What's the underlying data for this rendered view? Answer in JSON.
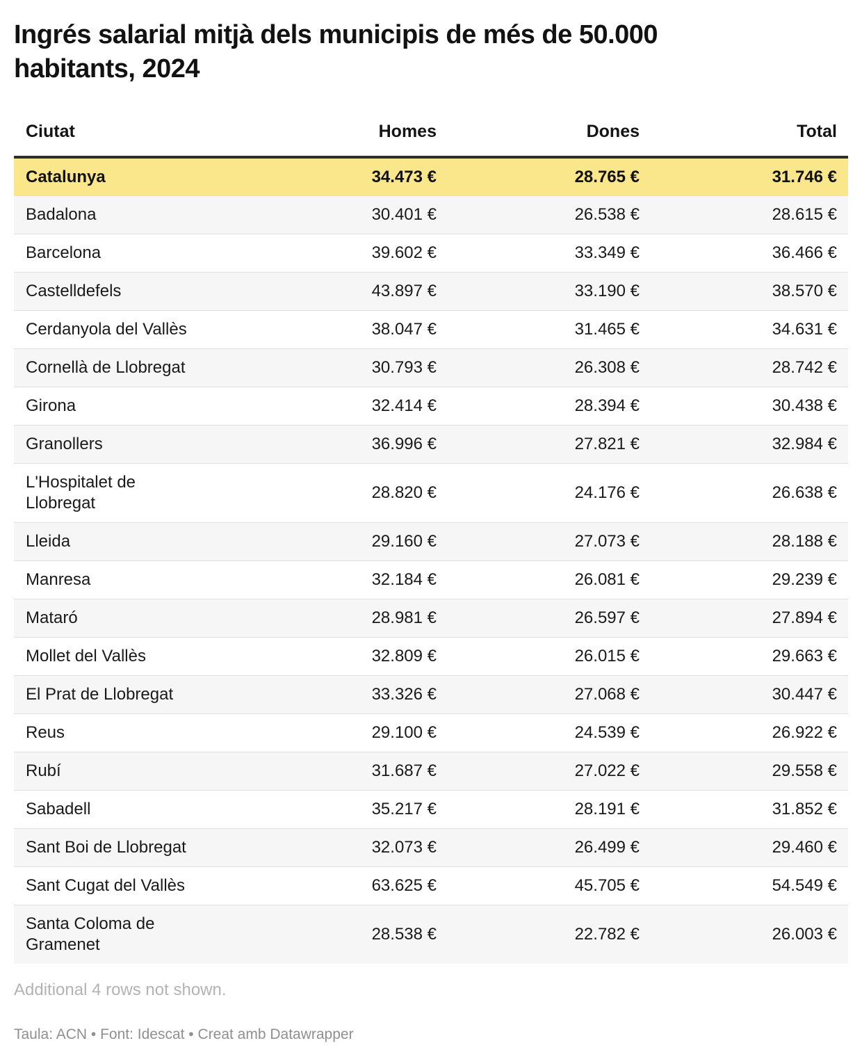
{
  "title": "Ingrés salarial mitjà dels municipis de més de 50.000 habitants, 2024",
  "table": {
    "columns": [
      "Ciutat",
      "Homes",
      "Dones",
      "Total"
    ],
    "rows": [
      {
        "ciutat": "Catalunya",
        "homes": "34.473 €",
        "dones": "28.765 €",
        "total": "31.746 €",
        "highlight": true
      },
      {
        "ciutat": "Badalona",
        "homes": "30.401 €",
        "dones": "26.538 €",
        "total": "28.615 €"
      },
      {
        "ciutat": "Barcelona",
        "homes": "39.602 €",
        "dones": "33.349 €",
        "total": "36.466 €"
      },
      {
        "ciutat": "Castelldefels",
        "homes": "43.897 €",
        "dones": "33.190 €",
        "total": "38.570 €"
      },
      {
        "ciutat": "Cerdanyola del Vallès",
        "homes": "38.047 €",
        "dones": "31.465 €",
        "total": "34.631 €"
      },
      {
        "ciutat": "Cornellà de Llobregat",
        "homes": "30.793 €",
        "dones": "26.308 €",
        "total": "28.742 €"
      },
      {
        "ciutat": "Girona",
        "homes": "32.414 €",
        "dones": "28.394 €",
        "total": "30.438 €"
      },
      {
        "ciutat": "Granollers",
        "homes": "36.996 €",
        "dones": "27.821 €",
        "total": "32.984 €"
      },
      {
        "ciutat": "L'Hospitalet de Llobregat",
        "homes": "28.820 €",
        "dones": "24.176 €",
        "total": "26.638 €"
      },
      {
        "ciutat": "Lleida",
        "homes": "29.160 €",
        "dones": "27.073 €",
        "total": "28.188 €"
      },
      {
        "ciutat": "Manresa",
        "homes": "32.184 €",
        "dones": "26.081 €",
        "total": "29.239 €"
      },
      {
        "ciutat": "Mataró",
        "homes": "28.981 €",
        "dones": "26.597 €",
        "total": "27.894 €"
      },
      {
        "ciutat": "Mollet del Vallès",
        "homes": "32.809 €",
        "dones": "26.015 €",
        "total": "29.663 €"
      },
      {
        "ciutat": "El Prat de Llobregat",
        "homes": "33.326 €",
        "dones": "27.068 €",
        "total": "30.447 €"
      },
      {
        "ciutat": "Reus",
        "homes": "29.100 €",
        "dones": "24.539 €",
        "total": "26.922 €"
      },
      {
        "ciutat": "Rubí",
        "homes": "31.687 €",
        "dones": "27.022 €",
        "total": "29.558 €"
      },
      {
        "ciutat": "Sabadell",
        "homes": "35.217 €",
        "dones": "28.191 €",
        "total": "31.852 €"
      },
      {
        "ciutat": "Sant Boi de Llobregat",
        "homes": "32.073 €",
        "dones": "26.499 €",
        "total": "29.460 €"
      },
      {
        "ciutat": "Sant Cugat del Vallès",
        "homes": "63.625 €",
        "dones": "45.705 €",
        "total": "54.549 €"
      },
      {
        "ciutat": "Santa Coloma de Gramenet",
        "homes": "28.538 €",
        "dones": "22.782 €",
        "total": "26.003 €"
      }
    ]
  },
  "footer": {
    "additional_note": "Additional 4 rows not shown.",
    "credit": "Taula: ACN • Font: Idescat • Creat amb Datawrapper"
  },
  "colors": {
    "highlight_bg": "#fae78c",
    "stripe_bg": "#f6f6f6",
    "header_rule": "#2d2d2d",
    "row_divider": "#e0e0e0",
    "note_text": "#b3b3b3",
    "credit_text": "#8f8f8f"
  },
  "chart_data": {
    "type": "table",
    "title": "Ingrés salarial mitjà dels municipis de més de 50.000 habitants, 2024",
    "columns": [
      "Ciutat",
      "Homes",
      "Dones",
      "Total"
    ],
    "unit": "€",
    "highlighted_row": "Catalunya",
    "rows": [
      [
        "Catalunya",
        34473,
        28765,
        31746
      ],
      [
        "Badalona",
        30401,
        26538,
        28615
      ],
      [
        "Barcelona",
        39602,
        33349,
        36466
      ],
      [
        "Castelldefels",
        43897,
        33190,
        38570
      ],
      [
        "Cerdanyola del Vallès",
        38047,
        31465,
        34631
      ],
      [
        "Cornellà de Llobregat",
        30793,
        26308,
        28742
      ],
      [
        "Girona",
        32414,
        28394,
        30438
      ],
      [
        "Granollers",
        36996,
        27821,
        32984
      ],
      [
        "L'Hospitalet de Llobregat",
        28820,
        24176,
        26638
      ],
      [
        "Lleida",
        29160,
        27073,
        28188
      ],
      [
        "Manresa",
        32184,
        26081,
        29239
      ],
      [
        "Mataró",
        28981,
        26597,
        27894
      ],
      [
        "Mollet del Vallès",
        32809,
        26015,
        29663
      ],
      [
        "El Prat de Llobregat",
        33326,
        27068,
        30447
      ],
      [
        "Reus",
        29100,
        24539,
        26922
      ],
      [
        "Rubí",
        31687,
        27022,
        29558
      ],
      [
        "Sabadell",
        35217,
        28191,
        31852
      ],
      [
        "Sant Boi de Llobregat",
        32073,
        26499,
        29460
      ],
      [
        "Sant Cugat del Vallès",
        63625,
        45705,
        54549
      ],
      [
        "Santa Coloma de Gramenet",
        28538,
        22782,
        26003
      ]
    ],
    "notes": [
      "Additional 4 rows not shown.",
      "Taula: ACN • Font: Idescat • Creat amb Datawrapper"
    ]
  }
}
